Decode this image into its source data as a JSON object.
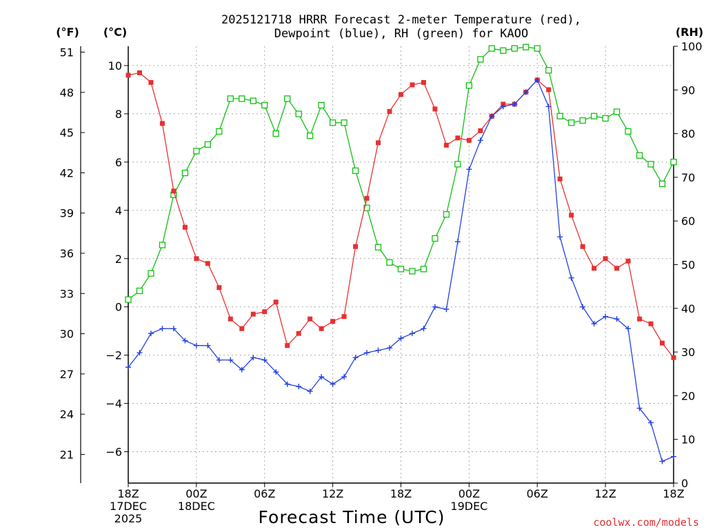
{
  "chart_data": {
    "type": "line",
    "title": [
      "2025121718 HRRR Forecast 2-meter Temperature (red),",
      "Dewpoint (blue), RH (green) for KAOO"
    ],
    "xlabel": "Forecast Time (UTC)",
    "credit": "coolwx.com/models",
    "units": {
      "left_f": "(°F)",
      "left_c": "(°C)",
      "right": "(RH)"
    },
    "x_range_hours": [
      0,
      48
    ],
    "x_ticks": [
      {
        "hour": 0,
        "lines": [
          "18Z",
          "17DEC",
          "2025"
        ]
      },
      {
        "hour": 6,
        "lines": [
          "00Z",
          "18DEC"
        ]
      },
      {
        "hour": 12,
        "lines": [
          "06Z"
        ]
      },
      {
        "hour": 18,
        "lines": [
          "12Z"
        ]
      },
      {
        "hour": 24,
        "lines": [
          "18Z"
        ]
      },
      {
        "hour": 30,
        "lines": [
          "00Z",
          "19DEC"
        ]
      },
      {
        "hour": 36,
        "lines": [
          "06Z"
        ]
      },
      {
        "hour": 42,
        "lines": [
          "12Z"
        ]
      },
      {
        "hour": 48,
        "lines": [
          "18Z"
        ]
      }
    ],
    "c_axis": {
      "range": [
        -7.3,
        10.8
      ],
      "ticks": [
        10,
        8,
        6,
        4,
        2,
        0,
        -2,
        -4,
        -6
      ]
    },
    "f_axis": {
      "ticks": [
        51,
        48,
        45,
        42,
        39,
        36,
        33,
        30,
        27,
        24,
        21
      ]
    },
    "rh_axis": {
      "range": [
        0,
        100
      ],
      "ticks": [
        100,
        90,
        80,
        70,
        60,
        50,
        40,
        30,
        20,
        10,
        0
      ]
    },
    "series": [
      {
        "name": "2-meter Temperature (°C)",
        "color": "#e83030",
        "marker": "filled-square",
        "axis": "c",
        "values": [
          9.6,
          9.7,
          9.3,
          7.6,
          4.8,
          3.3,
          2.0,
          1.8,
          0.8,
          -0.5,
          -0.9,
          -0.3,
          -0.2,
          0.2,
          -1.6,
          -1.1,
          -0.5,
          -0.9,
          -0.6,
          -0.4,
          2.5,
          4.5,
          6.8,
          8.1,
          8.8,
          9.2,
          9.3,
          8.2,
          6.7,
          7.0,
          6.9,
          7.3,
          7.9,
          8.4,
          8.4,
          8.9,
          9.4,
          9.0,
          5.3,
          3.8,
          2.5,
          1.6,
          2.0,
          1.6,
          1.9,
          -0.5,
          -0.7,
          -1.5,
          -2.1
        ]
      },
      {
        "name": "Dewpoint (°C)",
        "color": "#2040e0",
        "marker": "plus",
        "axis": "c",
        "values": [
          -2.5,
          -1.9,
          -1.1,
          -0.9,
          -0.9,
          -1.4,
          -1.6,
          -1.6,
          -2.2,
          -2.2,
          -2.6,
          -2.1,
          -2.2,
          -2.7,
          -3.2,
          -3.3,
          -3.5,
          -2.9,
          -3.2,
          -2.9,
          -2.1,
          -1.9,
          -1.8,
          -1.7,
          -1.3,
          -1.1,
          -0.9,
          0.0,
          -0.1,
          2.7,
          5.7,
          6.9,
          7.9,
          8.3,
          8.4,
          8.9,
          9.4,
          8.3,
          2.9,
          1.2,
          0.0,
          -0.7,
          -0.4,
          -0.5,
          -0.9,
          -4.2,
          -4.8,
          -6.4,
          -6.2
        ]
      },
      {
        "name": "RH (%)",
        "color": "#10c010",
        "marker": "open-square",
        "axis": "rh",
        "values": [
          42,
          44,
          48,
          54.5,
          66,
          71,
          76,
          77.5,
          80.5,
          88,
          88,
          87.5,
          86.5,
          80,
          88,
          84.5,
          79.5,
          86.5,
          82.5,
          82.5,
          71.5,
          63,
          54,
          50.5,
          49,
          48.5,
          49,
          56,
          61.5,
          73,
          91,
          97,
          99.5,
          99,
          99.5,
          99.8,
          99.5,
          94.5,
          84,
          82.5,
          83,
          84,
          83.5,
          85,
          80.5,
          75,
          73,
          68.5,
          73.5
        ]
      }
    ]
  }
}
